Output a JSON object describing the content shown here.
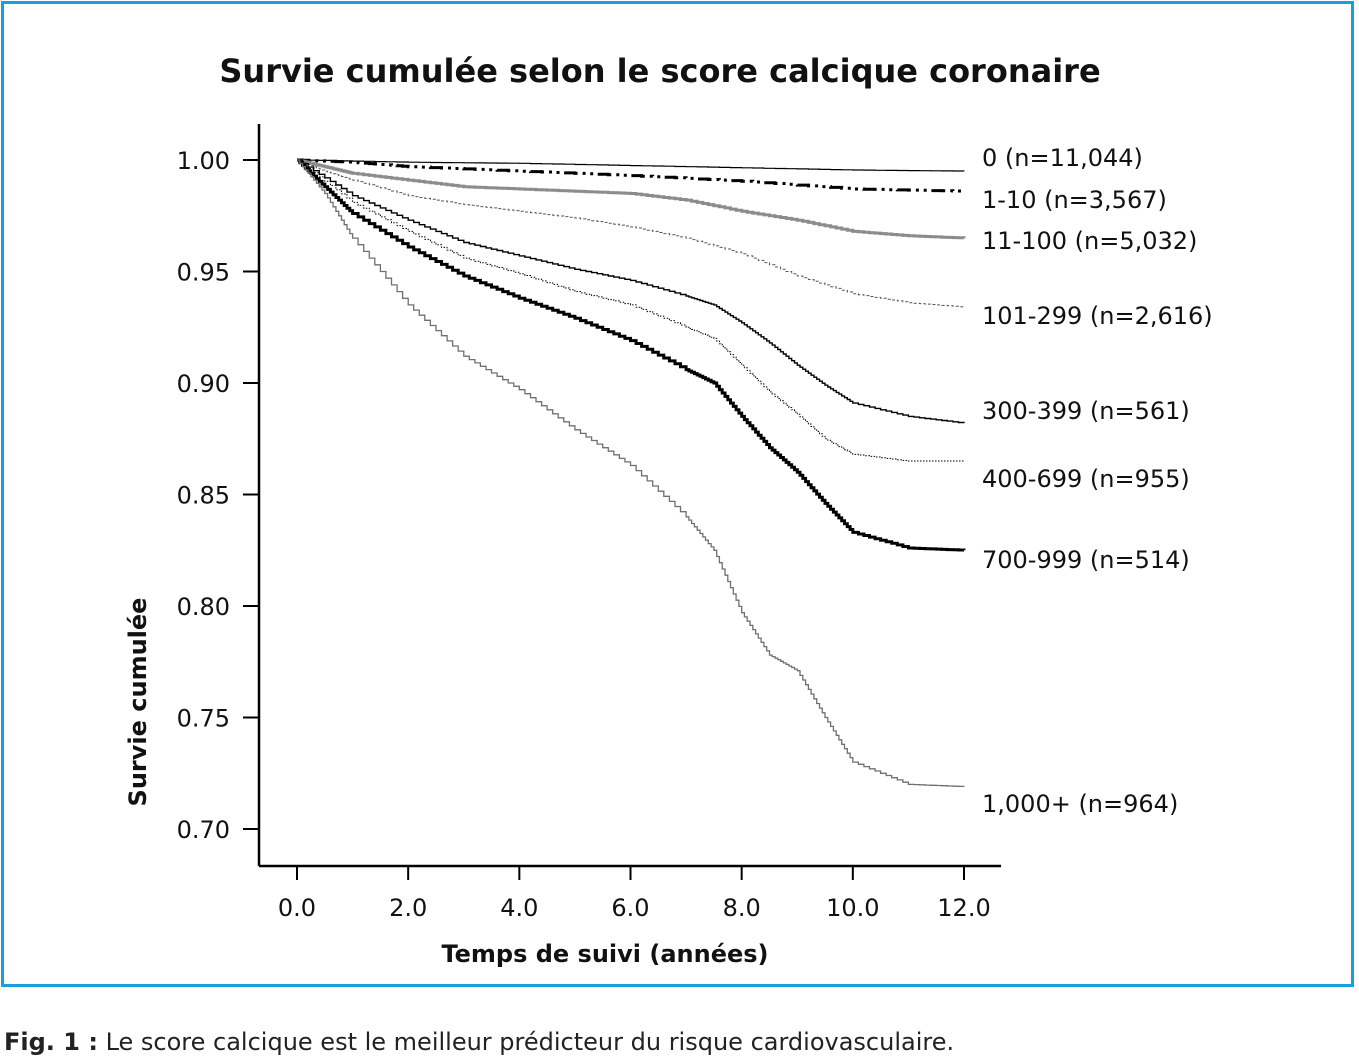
{
  "chart_data": {
    "type": "line",
    "title": "Survie cumulée selon le score calcique coronaire",
    "xlabel": "Temps de suivi (années)",
    "ylabel": "Survie cumulée",
    "xlim": [
      0,
      12
    ],
    "ylim": [
      0.7,
      1.0
    ],
    "x_ticks": [
      "0.0",
      "2.0",
      "4.0",
      "6.0",
      "8.0",
      "10.0",
      "12.0"
    ],
    "y_ticks": [
      "1.00",
      "0.95",
      "0.90",
      "0.85",
      "0.80",
      "0.75",
      "0.70"
    ],
    "grid": false,
    "legend": "direct labels at line ends (right)",
    "series": [
      {
        "name": "0 (n=11,044)",
        "stroke": "#000000",
        "width": 1.2,
        "dash": "",
        "points": [
          [
            0,
            1.0
          ],
          [
            2,
            0.999
          ],
          [
            4,
            0.9985
          ],
          [
            6,
            0.9975
          ],
          [
            8,
            0.9965
          ],
          [
            10,
            0.9955
          ],
          [
            12,
            0.995
          ]
        ]
      },
      {
        "name": "1-10 (n=3,567)",
        "stroke": "#000000",
        "width": 3,
        "dash": "14 5 3 5 3 5",
        "points": [
          [
            0,
            1.0
          ],
          [
            1,
            0.999
          ],
          [
            2,
            0.997
          ],
          [
            4,
            0.995
          ],
          [
            6,
            0.993
          ],
          [
            8,
            0.9905
          ],
          [
            10,
            0.987
          ],
          [
            12,
            0.986
          ]
        ]
      },
      {
        "name": "11-100 (n=5,032)",
        "stroke": "#8c8c8c",
        "width": 3,
        "dash": "",
        "points": [
          [
            0,
            1.0
          ],
          [
            0.5,
            0.997
          ],
          [
            1,
            0.994
          ],
          [
            2,
            0.991
          ],
          [
            3,
            0.988
          ],
          [
            4,
            0.987
          ],
          [
            5,
            0.986
          ],
          [
            6,
            0.985
          ],
          [
            7,
            0.982
          ],
          [
            8,
            0.977
          ],
          [
            9,
            0.973
          ],
          [
            10,
            0.968
          ],
          [
            11,
            0.966
          ],
          [
            12,
            0.965
          ]
        ]
      },
      {
        "name": "101-299 (n=2,616)",
        "stroke": "#555555",
        "width": 1,
        "dash": "3 2",
        "points": [
          [
            0,
            1.0
          ],
          [
            0.5,
            0.995
          ],
          [
            1,
            0.991
          ],
          [
            2,
            0.984
          ],
          [
            3,
            0.98
          ],
          [
            4,
            0.977
          ],
          [
            5,
            0.974
          ],
          [
            6,
            0.97
          ],
          [
            7,
            0.965
          ],
          [
            8,
            0.958
          ],
          [
            9,
            0.948
          ],
          [
            10,
            0.94
          ],
          [
            11,
            0.936
          ],
          [
            12,
            0.934
          ]
        ]
      },
      {
        "name": "300-399 (n=561)",
        "stroke": "#000000",
        "width": 1.4,
        "dash": "",
        "points": [
          [
            0,
            1.0
          ],
          [
            1,
            0.984
          ],
          [
            2,
            0.973
          ],
          [
            3,
            0.963
          ],
          [
            4,
            0.957
          ],
          [
            5,
            0.951
          ],
          [
            6,
            0.946
          ],
          [
            7,
            0.939
          ],
          [
            7.5,
            0.935
          ],
          [
            8,
            0.927
          ],
          [
            8.5,
            0.918
          ],
          [
            9,
            0.908
          ],
          [
            9.5,
            0.899
          ],
          [
            10,
            0.891
          ],
          [
            11,
            0.885
          ],
          [
            12,
            0.882
          ]
        ]
      },
      {
        "name": "400-699 (n=955)",
        "stroke": "#000000",
        "width": 1,
        "dash": "1.5 1.5",
        "points": [
          [
            0,
            1.0
          ],
          [
            1,
            0.981
          ],
          [
            2,
            0.968
          ],
          [
            3,
            0.956
          ],
          [
            4,
            0.949
          ],
          [
            5,
            0.941
          ],
          [
            6,
            0.935
          ],
          [
            7,
            0.925
          ],
          [
            7.5,
            0.92
          ],
          [
            8,
            0.908
          ],
          [
            8.5,
            0.896
          ],
          [
            9,
            0.886
          ],
          [
            9.5,
            0.875
          ],
          [
            10,
            0.868
          ],
          [
            11,
            0.865
          ],
          [
            12,
            0.865
          ]
        ]
      },
      {
        "name": "700-999 (n=514)",
        "stroke": "#000000",
        "width": 3,
        "dash": "",
        "points": [
          [
            0,
            1.0
          ],
          [
            0.5,
            0.988
          ],
          [
            1,
            0.976
          ],
          [
            2,
            0.961
          ],
          [
            3,
            0.948
          ],
          [
            4,
            0.938
          ],
          [
            5,
            0.929
          ],
          [
            6,
            0.919
          ],
          [
            7,
            0.906
          ],
          [
            7.5,
            0.9
          ],
          [
            8,
            0.885
          ],
          [
            8.5,
            0.871
          ],
          [
            9,
            0.86
          ],
          [
            9.5,
            0.846
          ],
          [
            10,
            0.833
          ],
          [
            11,
            0.826
          ],
          [
            12,
            0.825
          ]
        ]
      },
      {
        "name": "1,000+ (n=964)",
        "stroke": "#707070",
        "width": 1.3,
        "dash": "",
        "points": [
          [
            0,
            1.0
          ],
          [
            0.5,
            0.985
          ],
          [
            1,
            0.965
          ],
          [
            2,
            0.935
          ],
          [
            3,
            0.912
          ],
          [
            4,
            0.897
          ],
          [
            5,
            0.879
          ],
          [
            6,
            0.863
          ],
          [
            7,
            0.84
          ],
          [
            7.5,
            0.825
          ],
          [
            8,
            0.797
          ],
          [
            8.5,
            0.778
          ],
          [
            9,
            0.771
          ],
          [
            9.5,
            0.75
          ],
          [
            10,
            0.73
          ],
          [
            11,
            0.72
          ],
          [
            12,
            0.719
          ]
        ]
      }
    ]
  },
  "caption": {
    "label": "Fig. 1 :",
    "text": " Le score calcique est le meilleur prédicteur du risque cardiovasculaire."
  }
}
